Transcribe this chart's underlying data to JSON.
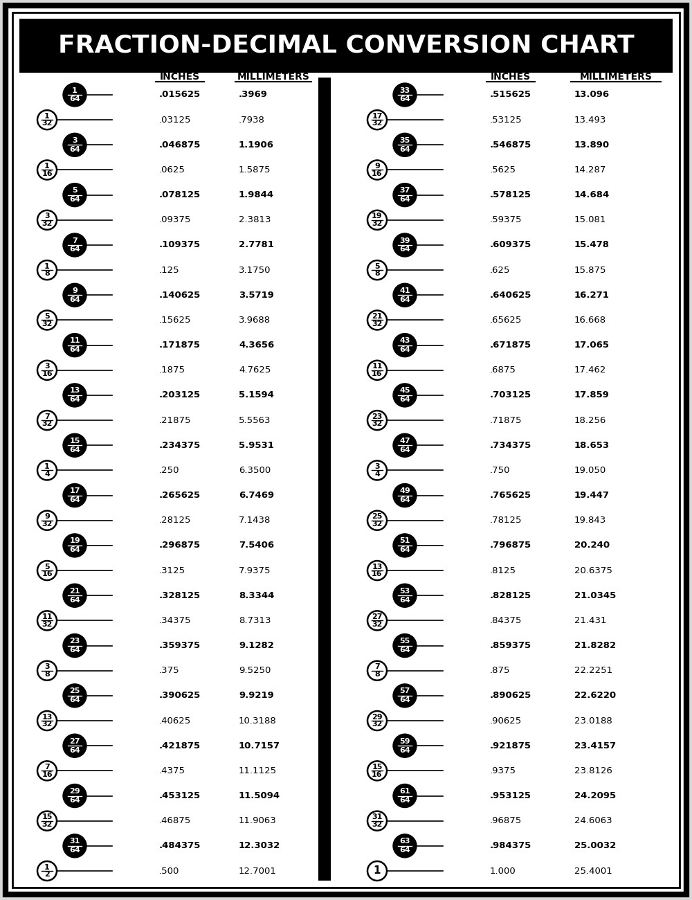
{
  "title": "FRACTION-DECIMAL CONVERSION CHART",
  "bg_color": "#f0f0f0",
  "left_col": {
    "rows": [
      {
        "frac": "1/64",
        "filled": true,
        "inches": ".015625",
        "mm": ".3969",
        "bold": true
      },
      {
        "frac": "1/32",
        "filled": false,
        "inches": ".03125",
        "mm": ".7938",
        "bold": false
      },
      {
        "frac": "3/64",
        "filled": true,
        "inches": ".046875",
        "mm": "1.1906",
        "bold": true
      },
      {
        "frac": "1/16",
        "filled": false,
        "inches": ".0625",
        "mm": "1.5875",
        "bold": false
      },
      {
        "frac": "5/64",
        "filled": true,
        "inches": ".078125",
        "mm": "1.9844",
        "bold": true
      },
      {
        "frac": "3/32",
        "filled": false,
        "inches": ".09375",
        "mm": "2.3813",
        "bold": false
      },
      {
        "frac": "7/64",
        "filled": true,
        "inches": ".109375",
        "mm": "2.7781",
        "bold": true
      },
      {
        "frac": "1/8",
        "filled": false,
        "inches": ".125",
        "mm": "3.1750",
        "bold": false
      },
      {
        "frac": "9/64",
        "filled": true,
        "inches": ".140625",
        "mm": "3.5719",
        "bold": true
      },
      {
        "frac": "5/32",
        "filled": false,
        "inches": ".15625",
        "mm": "3.9688",
        "bold": false
      },
      {
        "frac": "11/64",
        "filled": true,
        "inches": ".171875",
        "mm": "4.3656",
        "bold": true
      },
      {
        "frac": "3/16",
        "filled": false,
        "inches": ".1875",
        "mm": "4.7625",
        "bold": false
      },
      {
        "frac": "13/64",
        "filled": true,
        "inches": ".203125",
        "mm": "5.1594",
        "bold": true
      },
      {
        "frac": "7/32",
        "filled": false,
        "inches": ".21875",
        "mm": "5.5563",
        "bold": false
      },
      {
        "frac": "15/64",
        "filled": true,
        "inches": ".234375",
        "mm": "5.9531",
        "bold": true
      },
      {
        "frac": "1/4",
        "filled": false,
        "inches": ".250",
        "mm": "6.3500",
        "bold": false
      },
      {
        "frac": "17/64",
        "filled": true,
        "inches": ".265625",
        "mm": "6.7469",
        "bold": true
      },
      {
        "frac": "9/32",
        "filled": false,
        "inches": ".28125",
        "mm": "7.1438",
        "bold": false
      },
      {
        "frac": "19/64",
        "filled": true,
        "inches": ".296875",
        "mm": "7.5406",
        "bold": true
      },
      {
        "frac": "5/16",
        "filled": false,
        "inches": ".3125",
        "mm": "7.9375",
        "bold": false
      },
      {
        "frac": "21/64",
        "filled": true,
        "inches": ".328125",
        "mm": "8.3344",
        "bold": true
      },
      {
        "frac": "11/32",
        "filled": false,
        "inches": ".34375",
        "mm": "8.7313",
        "bold": false
      },
      {
        "frac": "23/64",
        "filled": true,
        "inches": ".359375",
        "mm": "9.1282",
        "bold": true
      },
      {
        "frac": "3/8",
        "filled": false,
        "inches": ".375",
        "mm": "9.5250",
        "bold": false
      },
      {
        "frac": "25/64",
        "filled": true,
        "inches": ".390625",
        "mm": "9.9219",
        "bold": true
      },
      {
        "frac": "13/32",
        "filled": false,
        "inches": ".40625",
        "mm": "10.3188",
        "bold": false
      },
      {
        "frac": "27/64",
        "filled": true,
        "inches": ".421875",
        "mm": "10.7157",
        "bold": true
      },
      {
        "frac": "7/16",
        "filled": false,
        "inches": ".4375",
        "mm": "11.1125",
        "bold": false
      },
      {
        "frac": "29/64",
        "filled": true,
        "inches": ".453125",
        "mm": "11.5094",
        "bold": true
      },
      {
        "frac": "15/32",
        "filled": false,
        "inches": ".46875",
        "mm": "11.9063",
        "bold": false
      },
      {
        "frac": "31/64",
        "filled": true,
        "inches": ".484375",
        "mm": "12.3032",
        "bold": true
      },
      {
        "frac": "1/2",
        "filled": false,
        "inches": ".500",
        "mm": "12.7001",
        "bold": false
      }
    ]
  },
  "right_col": {
    "rows": [
      {
        "frac": "33/64",
        "filled": true,
        "inches": ".515625",
        "mm": "13.096",
        "bold": true
      },
      {
        "frac": "17/32",
        "filled": false,
        "inches": ".53125",
        "mm": "13.493",
        "bold": false
      },
      {
        "frac": "35/64",
        "filled": true,
        "inches": ".546875",
        "mm": "13.890",
        "bold": true
      },
      {
        "frac": "9/16",
        "filled": false,
        "inches": ".5625",
        "mm": "14.287",
        "bold": false
      },
      {
        "frac": "37/64",
        "filled": true,
        "inches": ".578125",
        "mm": "14.684",
        "bold": true
      },
      {
        "frac": "19/32",
        "filled": false,
        "inches": ".59375",
        "mm": "15.081",
        "bold": false
      },
      {
        "frac": "39/64",
        "filled": true,
        "inches": ".609375",
        "mm": "15.478",
        "bold": true
      },
      {
        "frac": "5/8",
        "filled": false,
        "inches": ".625",
        "mm": "15.875",
        "bold": false
      },
      {
        "frac": "41/64",
        "filled": true,
        "inches": ".640625",
        "mm": "16.271",
        "bold": true
      },
      {
        "frac": "21/32",
        "filled": false,
        "inches": ".65625",
        "mm": "16.668",
        "bold": false
      },
      {
        "frac": "43/64",
        "filled": true,
        "inches": ".671875",
        "mm": "17.065",
        "bold": true
      },
      {
        "frac": "11/16",
        "filled": false,
        "inches": ".6875",
        "mm": "17.462",
        "bold": false
      },
      {
        "frac": "45/64",
        "filled": true,
        "inches": ".703125",
        "mm": "17.859",
        "bold": true
      },
      {
        "frac": "23/32",
        "filled": false,
        "inches": ".71875",
        "mm": "18.256",
        "bold": false
      },
      {
        "frac": "47/64",
        "filled": true,
        "inches": ".734375",
        "mm": "18.653",
        "bold": true
      },
      {
        "frac": "3/4",
        "filled": false,
        "inches": ".750",
        "mm": "19.050",
        "bold": false
      },
      {
        "frac": "49/64",
        "filled": true,
        "inches": ".765625",
        "mm": "19.447",
        "bold": true
      },
      {
        "frac": "25/32",
        "filled": false,
        "inches": ".78125",
        "mm": "19.843",
        "bold": false
      },
      {
        "frac": "51/64",
        "filled": true,
        "inches": ".796875",
        "mm": "20.240",
        "bold": true
      },
      {
        "frac": "13/16",
        "filled": false,
        "inches": ".8125",
        "mm": "20.6375",
        "bold": false
      },
      {
        "frac": "53/64",
        "filled": true,
        "inches": ".828125",
        "mm": "21.0345",
        "bold": true
      },
      {
        "frac": "27/32",
        "filled": false,
        "inches": ".84375",
        "mm": "21.431",
        "bold": false
      },
      {
        "frac": "55/64",
        "filled": true,
        "inches": ".859375",
        "mm": "21.8282",
        "bold": true
      },
      {
        "frac": "7/8",
        "filled": false,
        "inches": ".875",
        "mm": "22.2251",
        "bold": false
      },
      {
        "frac": "57/64",
        "filled": true,
        "inches": ".890625",
        "mm": "22.6220",
        "bold": true
      },
      {
        "frac": "29/32",
        "filled": false,
        "inches": ".90625",
        "mm": "23.0188",
        "bold": false
      },
      {
        "frac": "59/64",
        "filled": true,
        "inches": ".921875",
        "mm": "23.4157",
        "bold": true
      },
      {
        "frac": "15/16",
        "filled": false,
        "inches": ".9375",
        "mm": "23.8126",
        "bold": false
      },
      {
        "frac": "61/64",
        "filled": true,
        "inches": ".953125",
        "mm": "24.2095",
        "bold": true
      },
      {
        "frac": "31/32",
        "filled": false,
        "inches": ".96875",
        "mm": "24.6063",
        "bold": false
      },
      {
        "frac": "63/64",
        "filled": true,
        "inches": ".984375",
        "mm": "25.0032",
        "bold": true
      },
      {
        "frac": "1",
        "filled": false,
        "inches": "1.000",
        "mm": "25.4001",
        "bold": false
      }
    ]
  }
}
